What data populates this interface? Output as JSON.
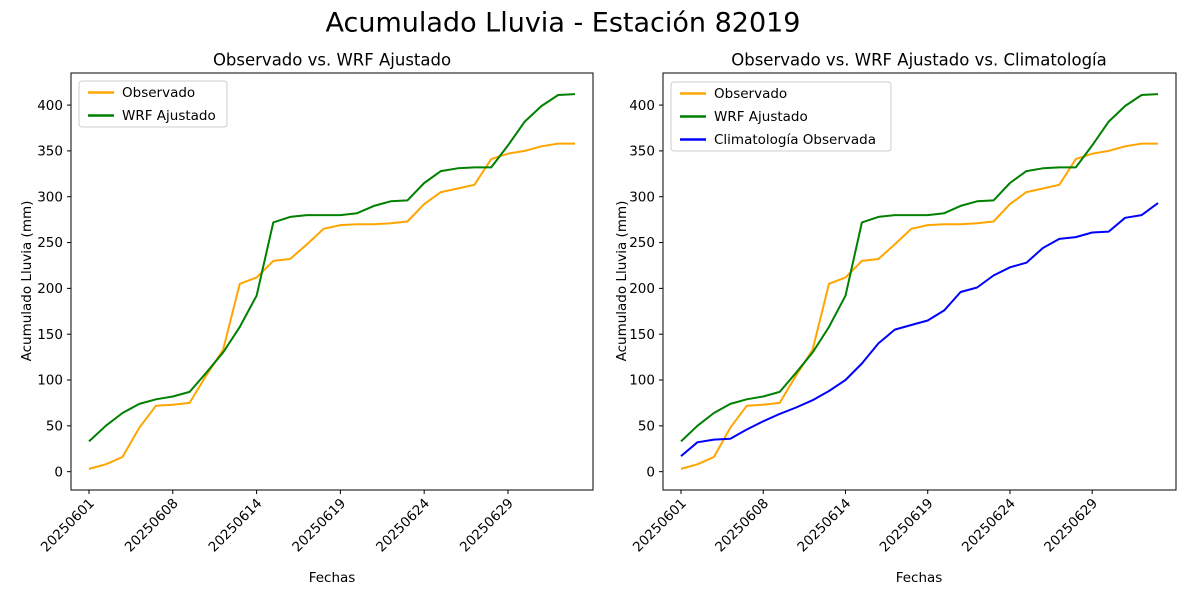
{
  "figure": {
    "suptitle": "Acumulado Lluvia - Estación 82019",
    "background_color": "#ffffff",
    "text_color": "#000000"
  },
  "chart_data": [
    {
      "type": "line",
      "title": "Observado vs. WRF Ajustado",
      "xlabel": "Fechas",
      "ylabel": "Acumulado Lluvia (mm)",
      "ylim": [
        -20,
        435
      ],
      "yticks": [
        0,
        50,
        100,
        150,
        200,
        250,
        300,
        350,
        400
      ],
      "x_count": 30,
      "xtick_positions": [
        0,
        5,
        10,
        15,
        20,
        25
      ],
      "xtick_labels": [
        "20250601",
        "20250608",
        "20250614",
        "20250619",
        "20250624",
        "20250629"
      ],
      "xtick_rotation": 45,
      "grid": false,
      "legend_position": "upper-left",
      "series": [
        {
          "name": "Observado",
          "color": "#FFA500",
          "values": [
            3,
            8,
            16,
            48,
            72,
            73,
            75,
            105,
            133,
            205,
            212,
            230,
            232,
            248,
            265,
            269,
            270,
            270,
            271,
            273,
            292,
            305,
            309,
            313,
            341,
            347,
            350,
            355,
            358,
            358
          ]
        },
        {
          "name": "WRF Ajustado",
          "color": "#008000",
          "values": [
            33,
            50,
            64,
            74,
            79,
            82,
            87,
            108,
            130,
            158,
            192,
            272,
            278,
            280,
            280,
            280,
            282,
            290,
            295,
            296,
            315,
            328,
            331,
            332,
            332,
            356,
            382,
            399,
            411,
            412
          ]
        }
      ]
    },
    {
      "type": "line",
      "title": "Observado vs. WRF Ajustado vs. Climatología",
      "xlabel": "Fechas",
      "ylabel": "Acumulado Lluvia (mm)",
      "ylim": [
        -20,
        435
      ],
      "yticks": [
        0,
        50,
        100,
        150,
        200,
        250,
        300,
        350,
        400
      ],
      "x_count": 30,
      "xtick_positions": [
        0,
        5,
        10,
        15,
        20,
        25
      ],
      "xtick_labels": [
        "20250601",
        "20250608",
        "20250614",
        "20250619",
        "20250624",
        "20250629"
      ],
      "xtick_rotation": 45,
      "grid": false,
      "legend_position": "upper-left",
      "series": [
        {
          "name": "Observado",
          "color": "#FFA500",
          "values": [
            3,
            8,
            16,
            48,
            72,
            73,
            75,
            105,
            133,
            205,
            212,
            230,
            232,
            248,
            265,
            269,
            270,
            270,
            271,
            273,
            292,
            305,
            309,
            313,
            341,
            347,
            350,
            355,
            358,
            358
          ]
        },
        {
          "name": "WRF Ajustado",
          "color": "#008000",
          "values": [
            33,
            50,
            64,
            74,
            79,
            82,
            87,
            108,
            130,
            158,
            192,
            272,
            278,
            280,
            280,
            280,
            282,
            290,
            295,
            296,
            315,
            328,
            331,
            332,
            332,
            356,
            382,
            399,
            411,
            412
          ]
        },
        {
          "name": "Climatología Observada",
          "color": "#0000FF",
          "values": [
            17,
            32,
            35,
            36,
            46,
            55,
            63,
            70,
            78,
            88,
            100,
            118,
            140,
            155,
            160,
            165,
            176,
            196,
            201,
            214,
            223,
            228,
            244,
            254,
            256,
            261,
            262,
            277,
            280,
            293
          ]
        }
      ]
    }
  ]
}
